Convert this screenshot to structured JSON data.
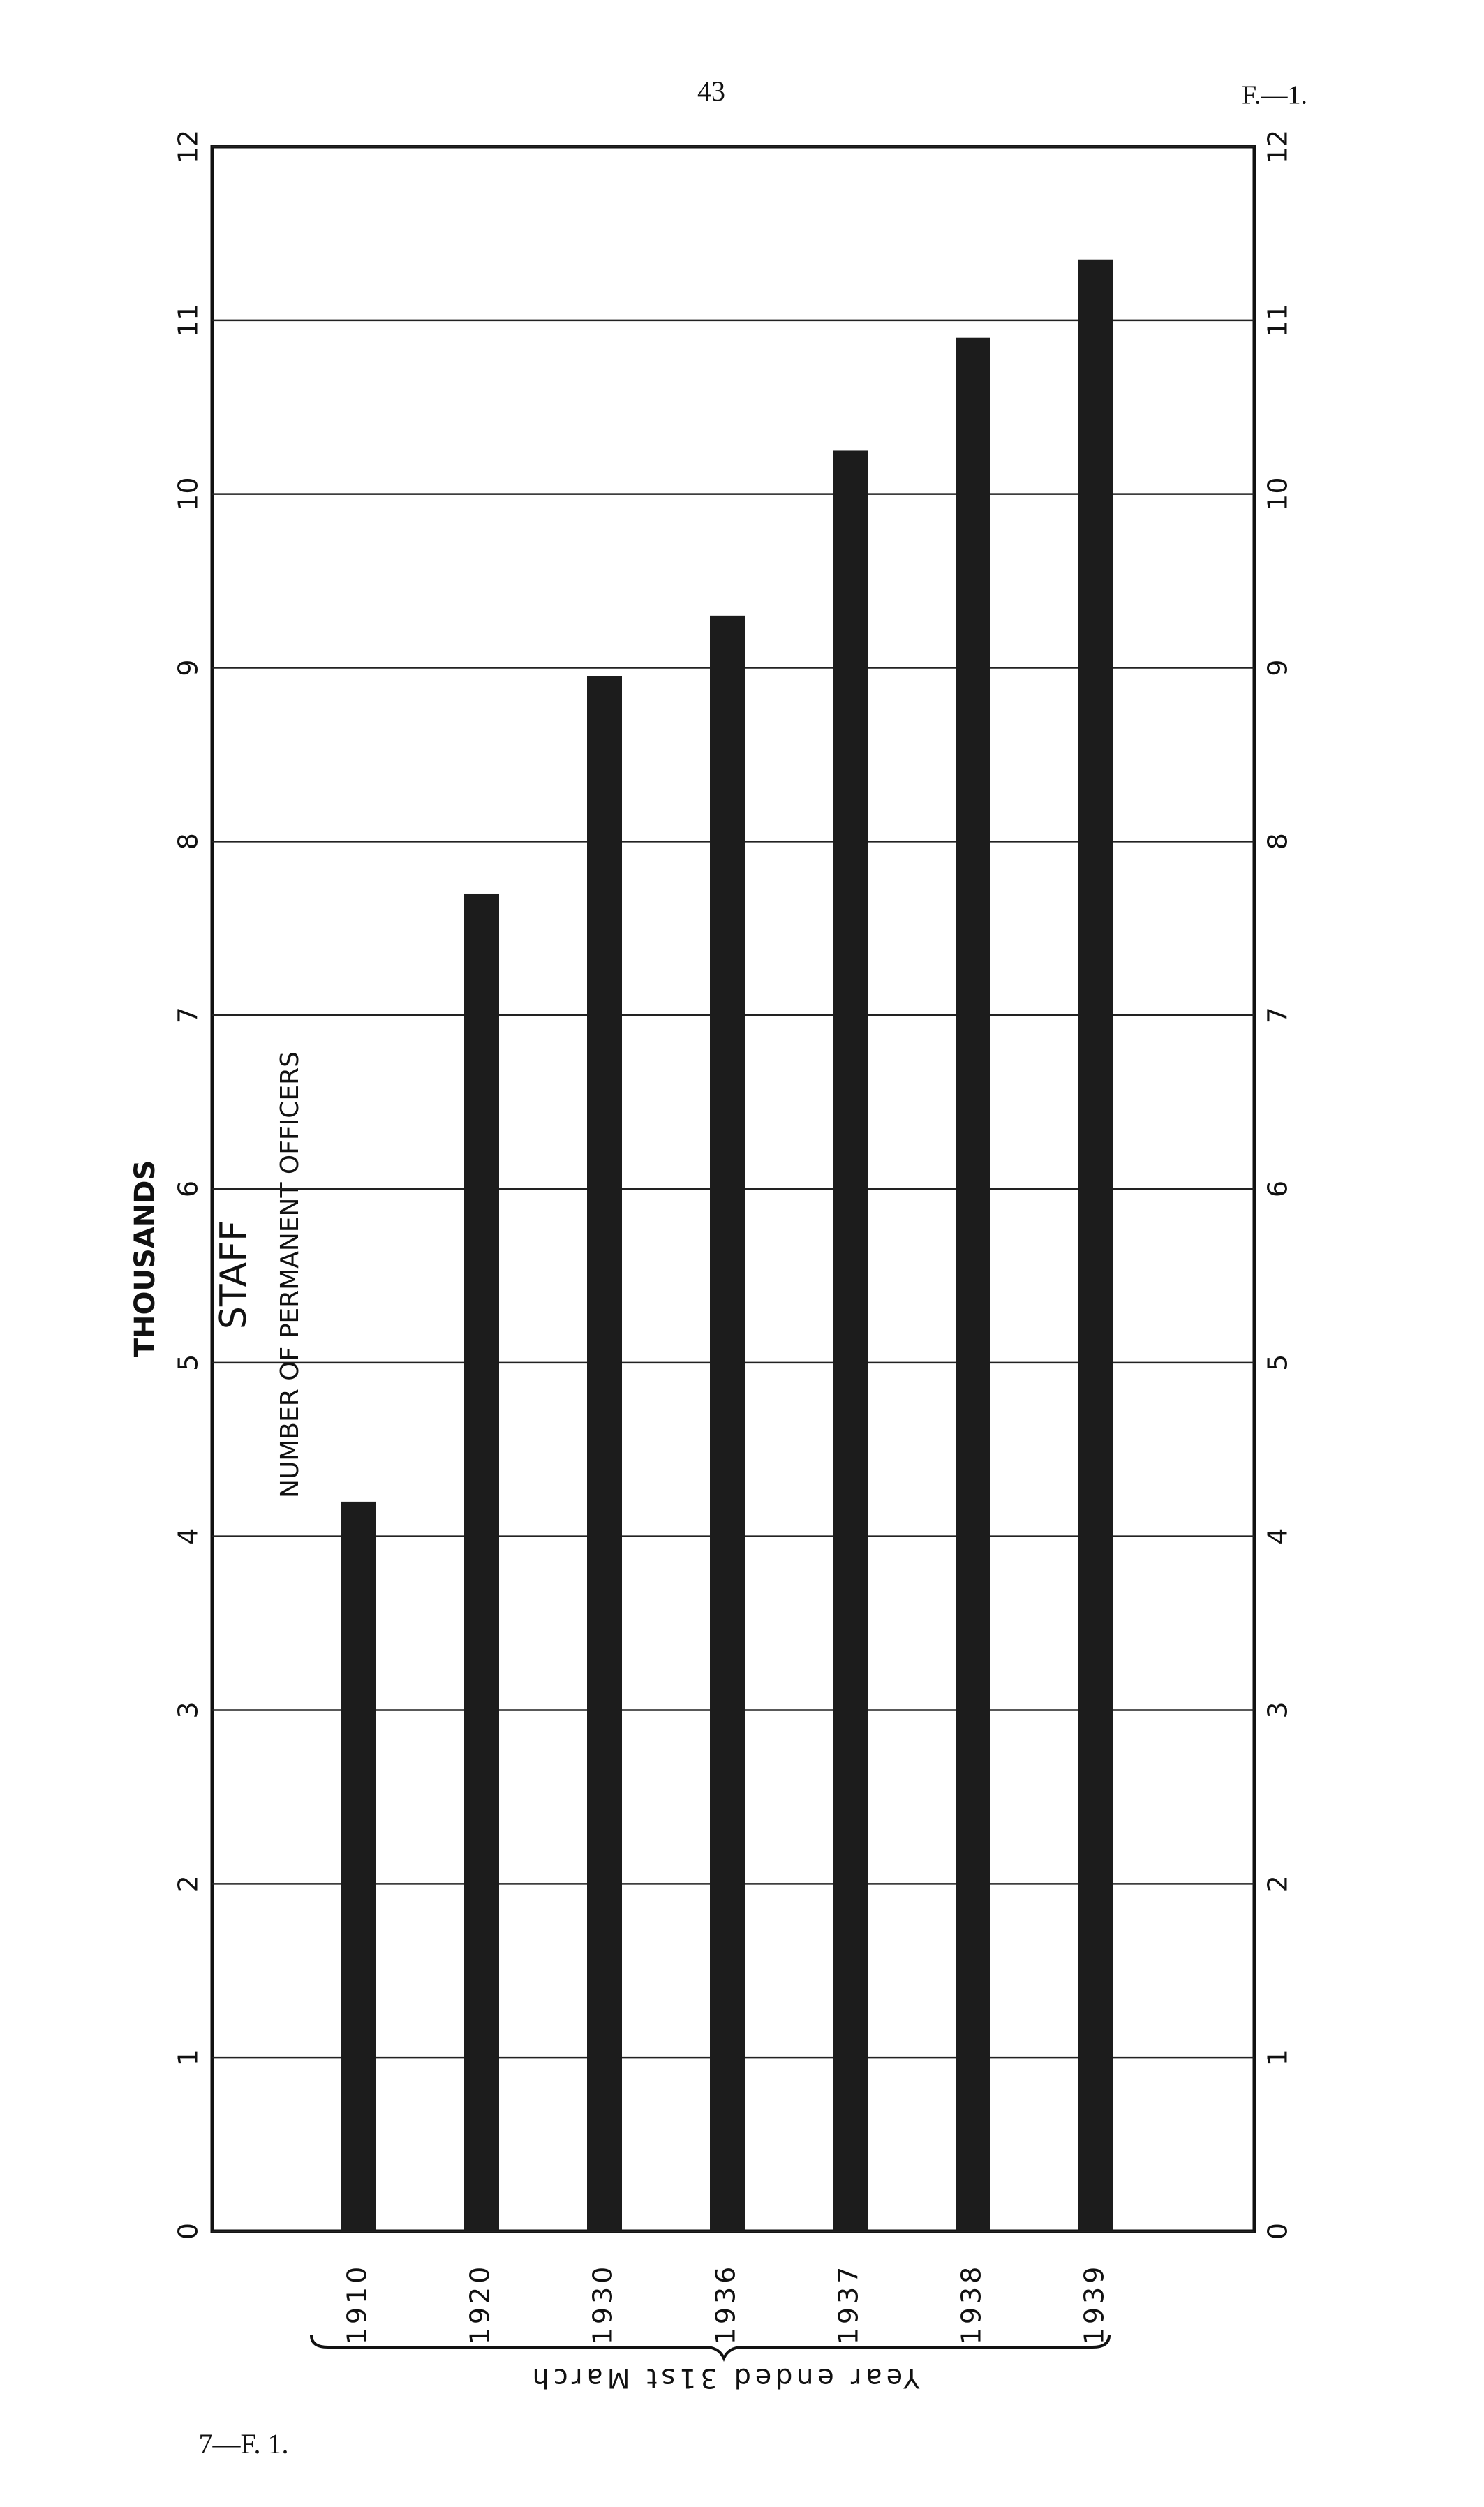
{
  "page_number": "43",
  "page_ref": "F.—1.",
  "footer": "7—F. 1.",
  "chart_data": {
    "type": "bar",
    "title": "STAFF",
    "subtitle": "NUMBER OF PERMANENT OFFICERS",
    "y_label": "THOUSANDS",
    "x_label": "Year ended 31st March",
    "categories": [
      "1910",
      "1920",
      "1930",
      "1936",
      "1937",
      "1938",
      "1939"
    ],
    "values": [
      4.2,
      7.7,
      8.95,
      9.3,
      10.25,
      10.9,
      11.35
    ],
    "color": "#1c1c1c",
    "ylim": [
      0,
      12
    ],
    "yticks": [
      0,
      1,
      2,
      3,
      4,
      5,
      6,
      7,
      8,
      9,
      10,
      11,
      12
    ],
    "grid": true
  }
}
